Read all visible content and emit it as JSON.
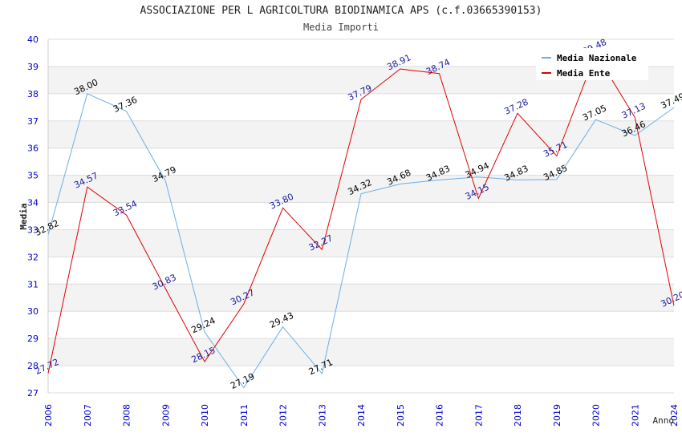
{
  "title": "ASSOCIAZIONE PER L AGRICOLTURA BIODINAMICA APS (c.f.03665390153)",
  "subtitle": "Media Importi",
  "chart_data": {
    "type": "line",
    "title": "ASSOCIAZIONE PER L AGRICOLTURA BIODINAMICA APS (c.f.03665390153)",
    "subtitle": "Media Importi",
    "xlabel": "Anno",
    "ylabel": "Media",
    "ylim": [
      27,
      40
    ],
    "yticks": [
      27,
      28,
      29,
      30,
      31,
      32,
      33,
      34,
      35,
      36,
      37,
      38,
      39,
      40
    ],
    "x": [
      "2006",
      "2007",
      "2008",
      "2009",
      "2010",
      "2011",
      "2012",
      "2013",
      "2014",
      "2015",
      "2016",
      "2017",
      "2018",
      "2019",
      "2020",
      "2021",
      "2024"
    ],
    "series": [
      {
        "name": "Media Nazionale",
        "color": "#6aaee8",
        "label_color": "#000000",
        "values": [
          32.82,
          38.0,
          37.36,
          34.79,
          29.24,
          27.19,
          29.43,
          27.71,
          34.32,
          34.68,
          34.83,
          34.94,
          34.83,
          34.85,
          37.05,
          36.46,
          37.49
        ],
        "labels": [
          "32.82",
          "38.00",
          "37.36",
          "34.79",
          "29.24",
          "27.19",
          "29.43",
          "27.71",
          "34.32",
          "34.68",
          "34.83",
          "34.94",
          "34.83",
          "34.85",
          "37.05",
          "36.46",
          "37.49"
        ]
      },
      {
        "name": "Media Ente",
        "color": "#e00000",
        "label_color": "#1a1aa0",
        "values": [
          27.72,
          34.57,
          33.54,
          30.83,
          28.15,
          30.27,
          33.8,
          32.27,
          37.79,
          38.91,
          38.74,
          34.15,
          37.28,
          35.71,
          39.48,
          37.13,
          30.2
        ],
        "labels": [
          "27.72",
          "34.57",
          "33.54",
          "30.83",
          "28.15",
          "30.27",
          "33.80",
          "32.27",
          "37.79",
          "38.91",
          "38.74",
          "34.15",
          "37.28",
          "35.71",
          "39.48",
          "37.13",
          "30.20"
        ]
      }
    ],
    "grid": true,
    "band_colors": [
      "#ffffff",
      "#f3f3f3"
    ],
    "legend_position": "top-right",
    "axis_tick_color": "#0000cc"
  }
}
